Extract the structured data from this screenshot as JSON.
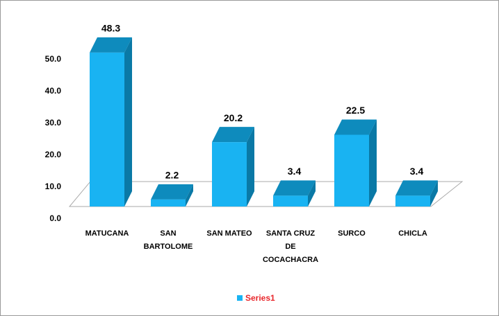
{
  "chart_data": {
    "type": "bar3d",
    "categories": [
      "MATUCANA",
      "SAN BARTOLOME",
      "SAN MATEO",
      "SANTA CRUZ DE COCACHACRA",
      "SURCO",
      "CHICLA"
    ],
    "series": [
      {
        "name": "Series1",
        "color": "#19b3f2",
        "values": [
          48.3,
          2.2,
          20.2,
          3.4,
          22.5,
          3.4
        ]
      }
    ],
    "ylim": [
      0,
      50
    ],
    "yticks": [
      {
        "value": 0,
        "label": "0.0"
      },
      {
        "value": 10,
        "label": "10.0"
      },
      {
        "value": 20,
        "label": "20.0"
      },
      {
        "value": 30,
        "label": "30.0"
      },
      {
        "value": 40,
        "label": "40.0"
      },
      {
        "value": 50,
        "label": "50.0"
      }
    ],
    "legend": "bottom"
  }
}
